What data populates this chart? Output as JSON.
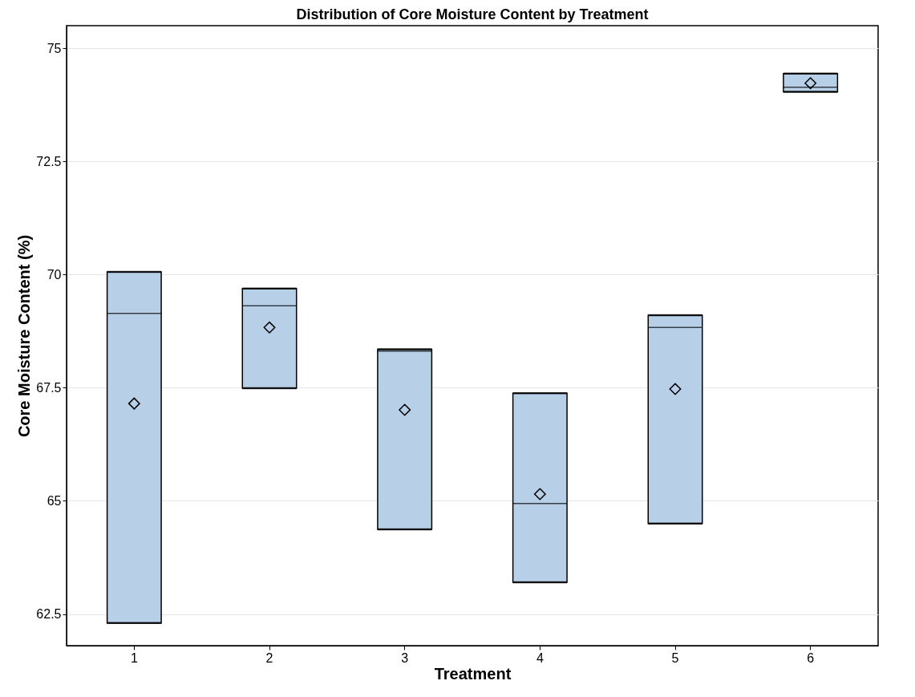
{
  "chart_data": {
    "type": "box",
    "title": "Distribution of Core Moisture Content by Treatment",
    "xlabel": "Treatment",
    "ylabel": "Core Moisture Content (%)",
    "categories": [
      "1",
      "2",
      "3",
      "4",
      "5",
      "6"
    ],
    "series": [
      {
        "color": "#b8cfe8",
        "boxes": [
          {
            "low": 62.3,
            "q1": 62.3,
            "median": 69.14,
            "q3": 70.06,
            "high": 70.06,
            "mean": 67.15
          },
          {
            "low": 67.49,
            "q1": 67.49,
            "median": 69.31,
            "q3": 69.69,
            "high": 69.69,
            "mean": 68.83
          },
          {
            "low": 64.37,
            "q1": 64.37,
            "median": 68.31,
            "q3": 68.35,
            "high": 68.35,
            "mean": 67.01
          },
          {
            "low": 63.2,
            "q1": 63.2,
            "median": 64.94,
            "q3": 67.38,
            "high": 67.38,
            "mean": 65.15
          },
          {
            "low": 64.5,
            "q1": 64.5,
            "median": 68.83,
            "q3": 69.1,
            "high": 69.1,
            "mean": 67.47
          },
          {
            "low": 74.04,
            "q1": 74.04,
            "median": 74.14,
            "q3": 74.44,
            "high": 74.44,
            "mean": 74.23
          }
        ]
      }
    ],
    "ylim": [
      61.8,
      75.5
    ],
    "yticks": [
      62.5,
      65,
      67.5,
      70,
      72.5,
      75
    ],
    "grid": "y",
    "marker": "diamond"
  }
}
